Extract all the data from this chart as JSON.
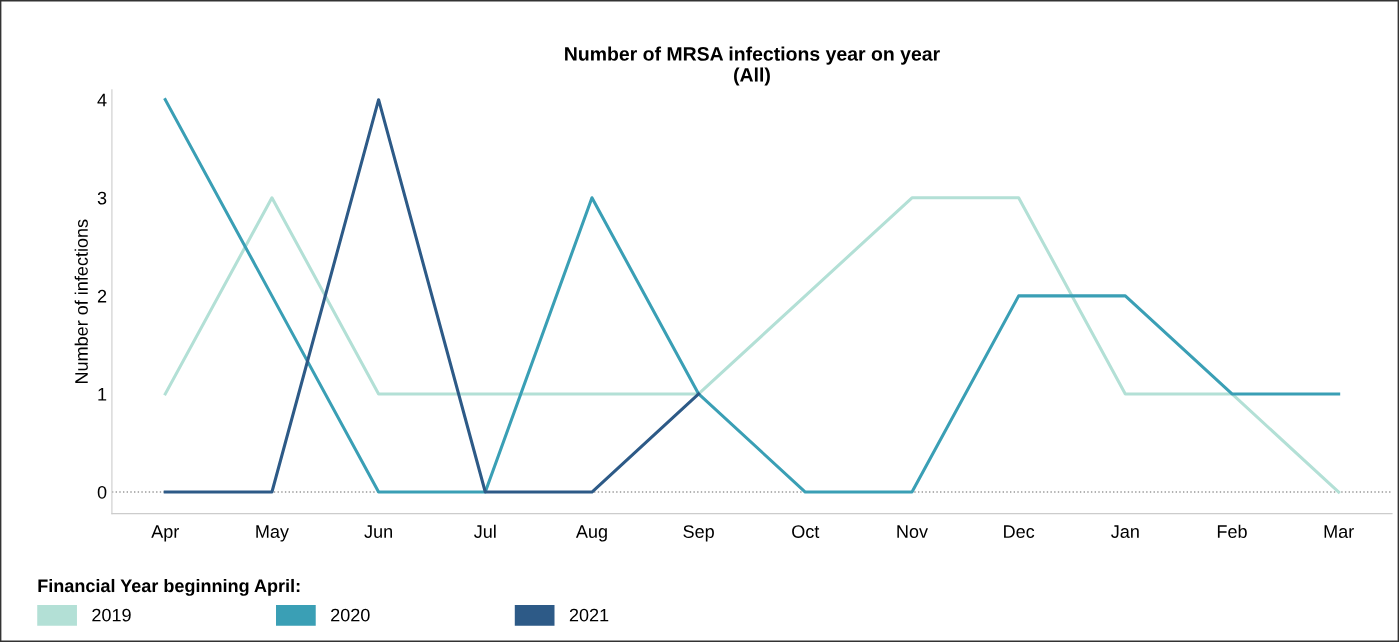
{
  "chart_data": {
    "type": "line",
    "title": "Number of MRSA infections year on year\n(All)",
    "ylabel": "Number of infections",
    "legend_title": "Financial Year beginning April:",
    "categories": [
      "Apr",
      "May",
      "Jun",
      "Jul",
      "Aug",
      "Sep",
      "Oct",
      "Nov",
      "Dec",
      "Jan",
      "Feb",
      "Mar"
    ],
    "series": [
      {
        "name": "2019",
        "color": "#b3e0d6",
        "values": [
          1,
          3,
          1,
          1,
          1,
          1,
          2,
          3,
          3,
          1,
          1,
          0
        ]
      },
      {
        "name": "2020",
        "color": "#3a9fb5",
        "values": [
          4,
          2,
          0,
          0,
          3,
          1,
          0,
          0,
          2,
          2,
          1,
          1
        ]
      },
      {
        "name": "2021",
        "color": "#2d5a87",
        "values": [
          0,
          0,
          4,
          0,
          0,
          1,
          null,
          null,
          null,
          null,
          null,
          null
        ]
      }
    ],
    "ylim": [
      -0.22,
      4.1
    ],
    "yticks": [
      0,
      1,
      2,
      3,
      4
    ],
    "grid": false,
    "legend": "bottom left",
    "marker": "none",
    "line_style": "solid",
    "ref_lines": [
      {
        "axis": "y",
        "value": 0,
        "color": "#999999",
        "line_style": "dotted"
      }
    ]
  }
}
